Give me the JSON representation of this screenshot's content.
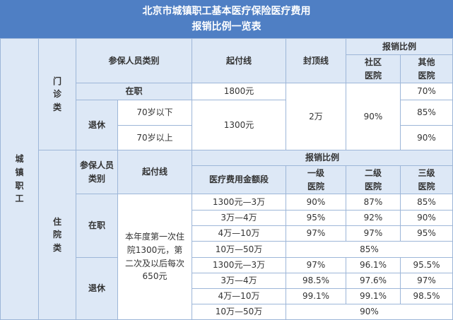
{
  "title": [
    "北京市城镇职工基本医疗保险医疗费用",
    "报销比例一览表"
  ],
  "group": "城镇职工",
  "outpatient": {
    "label": "门诊类",
    "headers": {
      "category": "参保人员类别",
      "deductible": "起付线",
      "cap": "封顶线",
      "ratio": "报销比例",
      "community": "社区医院",
      "other": "其他医院"
    },
    "employed": "在职",
    "retired": "退休",
    "under70": "70岁以下",
    "over70": "70岁以上",
    "deductible_employed": "1800元",
    "deductible_retired": "1300元",
    "cap": "2万",
    "community": "90%",
    "other": [
      "70%",
      "85%",
      "90%"
    ]
  },
  "inpatient": {
    "label": "住院类",
    "headers": {
      "category": "参保人员类别",
      "deductible": "起付线",
      "ratio": "报销比例",
      "range": "医疗费用金额段",
      "level1": "一级医院",
      "level2": "二级医院",
      "level3": "三级医院"
    },
    "deductible_text": "本年度第一次住院1300元，第二次及以后每次650元",
    "employed": {
      "label": "在职",
      "rows": [
        [
          "1300元—3万",
          "90%",
          "87%",
          "85%"
        ],
        [
          "3万—4万",
          "95%",
          "92%",
          "90%"
        ],
        [
          "4万—10万",
          "97%",
          "97%",
          "95%"
        ],
        [
          "10万—50万",
          "85%"
        ]
      ]
    },
    "retired": {
      "label": "退休",
      "rows": [
        [
          "1300元—3万",
          "97%",
          "96.1%",
          "95.5%"
        ],
        [
          "3万—4万",
          "98.5%",
          "97.6%",
          "97%"
        ],
        [
          "4万—10万",
          "99.1%",
          "99.1%",
          "98.5%"
        ],
        [
          "10万—50万",
          "90%"
        ]
      ]
    }
  }
}
